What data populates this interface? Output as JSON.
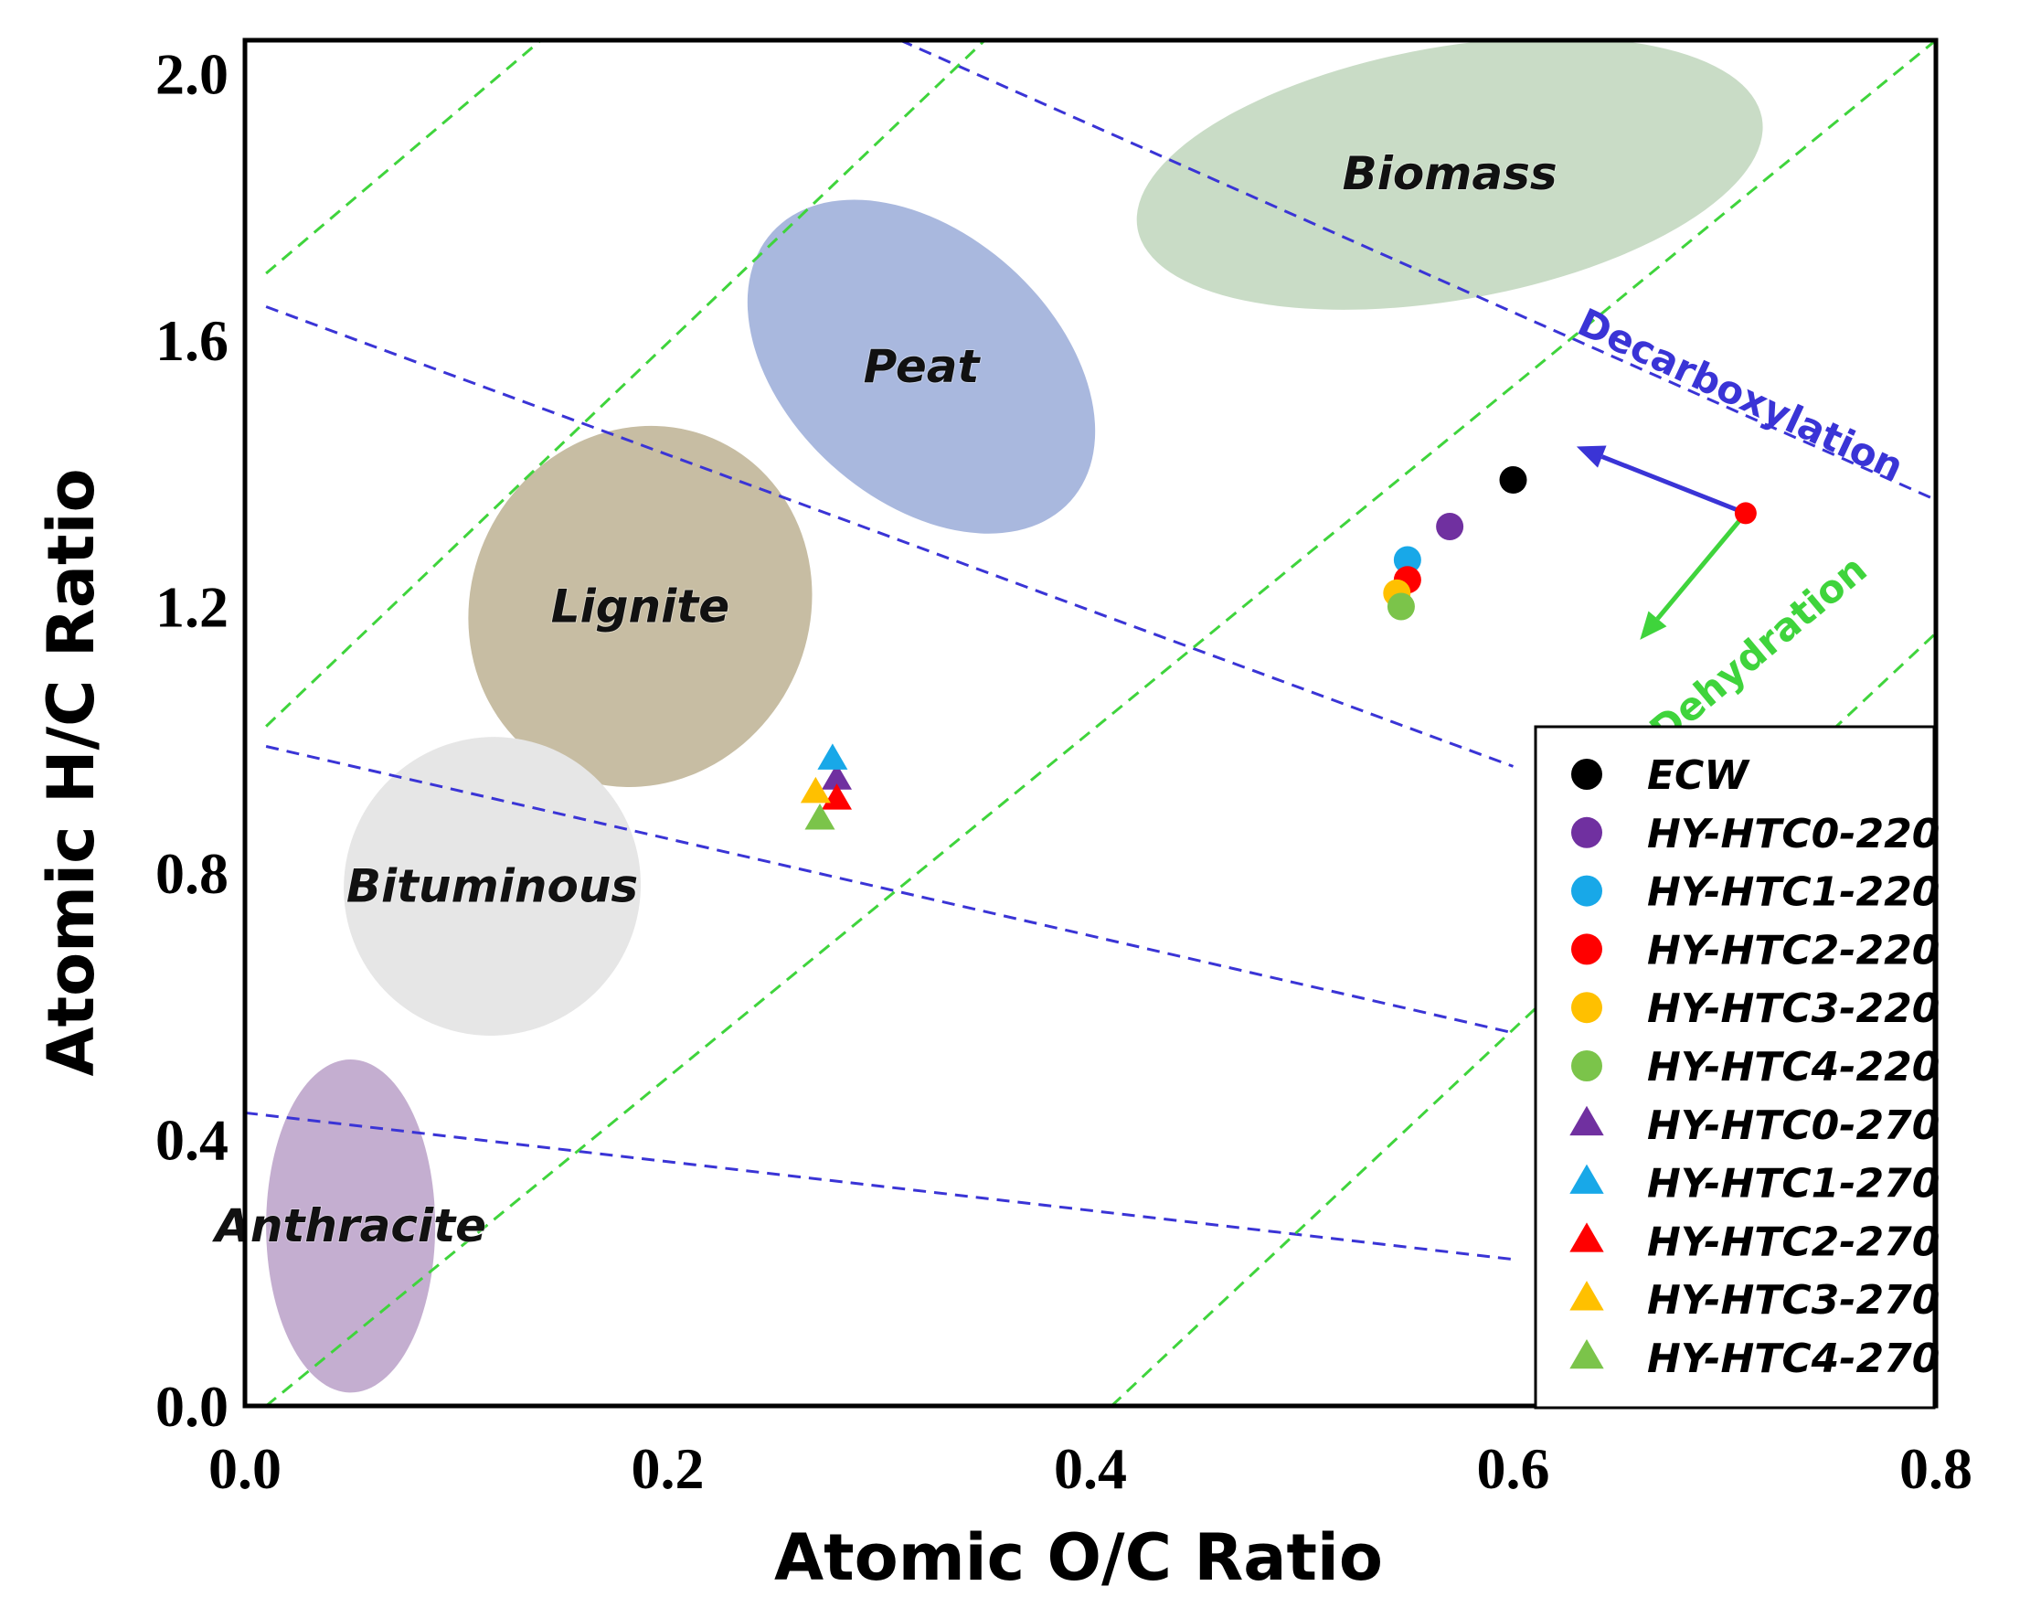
{
  "chart_data": {
    "type": "scatter",
    "title": "",
    "xlabel": "Atomic O/C Ratio",
    "ylabel": "Atomic H/C Ratio",
    "xlim": [
      0.0,
      0.8
    ],
    "ylim": [
      0.0,
      2.05
    ],
    "xticks": [
      "0.0",
      "0.2",
      "0.4",
      "0.6",
      "0.8"
    ],
    "yticks": [
      "0.0",
      "0.4",
      "0.8",
      "1.2",
      "1.6",
      "2.0"
    ],
    "grid": false,
    "regions": [
      {
        "name": "Biomass",
        "cx": 0.57,
        "cy": 1.85,
        "rx": 0.15,
        "ry": 0.19,
        "rotation": -10,
        "color": "#c9dcc6"
      },
      {
        "name": "Peat",
        "cx": 0.32,
        "cy": 1.56,
        "rx": 0.095,
        "ry": 0.2,
        "rotation": 42,
        "color": "#a9b8de"
      },
      {
        "name": "Lignite",
        "cx": 0.187,
        "cy": 1.2,
        "rx": 0.08,
        "ry": 0.275,
        "rotation": 26,
        "color": "#c7bda3"
      },
      {
        "name": "Bituminous",
        "cx": 0.117,
        "cy": 0.78,
        "rx": 0.07,
        "ry": 0.225,
        "rotation": 32,
        "color": "#e6e6e6"
      },
      {
        "name": "Anthracite",
        "cx": 0.05,
        "cy": 0.27,
        "rx": 0.04,
        "ry": 0.25,
        "rotation": 0,
        "color": "#c4aed0"
      }
    ],
    "reference_lines": {
      "decarboxylation": {
        "color": "#3a34d6",
        "segments": [
          [
            [
              0.0,
              0.44
            ],
            [
              0.6,
              0.22
            ]
          ],
          [
            [
              0.01,
              0.99
            ],
            [
              0.6,
              0.56
            ]
          ],
          [
            [
              0.01,
              1.65
            ],
            [
              0.6,
              0.96
            ]
          ],
          [
            [
              0.31,
              2.05
            ],
            [
              0.8,
              1.36
            ]
          ]
        ]
      },
      "dehydration": {
        "color": "#3fd43c",
        "segments": [
          [
            [
              0.01,
              1.7
            ],
            [
              0.14,
              2.05
            ]
          ],
          [
            [
              0.01,
              1.02
            ],
            [
              0.35,
              2.05
            ]
          ],
          [
            [
              0.01,
              0.0
            ],
            [
              0.8,
              2.05
            ]
          ],
          [
            [
              0.41,
              0.0
            ],
            [
              0.8,
              1.16
            ]
          ]
        ]
      }
    },
    "arrows": [
      {
        "label": "Decarboxylation",
        "color": "#3a34d6",
        "from": [
          0.71,
          1.34
        ],
        "to": [
          0.63,
          1.44
        ]
      },
      {
        "label": "Dehydration",
        "color": "#3fd43c",
        "from": [
          0.71,
          1.34
        ],
        "to": [
          0.66,
          1.15
        ]
      }
    ],
    "series": [
      {
        "name": "ECW",
        "marker": "circle",
        "color": "#000000",
        "x": 0.6,
        "y": 1.39
      },
      {
        "name": "HY-HTC0-220",
        "marker": "circle",
        "color": "#7030a0",
        "x": 0.57,
        "y": 1.32
      },
      {
        "name": "HY-HTC1-220",
        "marker": "circle",
        "color": "#18a8e8",
        "x": 0.55,
        "y": 1.27
      },
      {
        "name": "HY-HTC2-220",
        "marker": "circle",
        "color": "#ff0000",
        "x": 0.55,
        "y": 1.24
      },
      {
        "name": "HY-HTC3-220",
        "marker": "circle",
        "color": "#ffc000",
        "x": 0.545,
        "y": 1.22
      },
      {
        "name": "HY-HTC4-220",
        "marker": "circle",
        "color": "#7bc44a",
        "x": 0.547,
        "y": 1.2
      },
      {
        "name": "HY-HTC0-270",
        "marker": "triangle",
        "color": "#7030a0",
        "x": 0.28,
        "y": 0.94
      },
      {
        "name": "HY-HTC1-270",
        "marker": "triangle",
        "color": "#18a8e8",
        "x": 0.278,
        "y": 0.97
      },
      {
        "name": "HY-HTC2-270",
        "marker": "triangle",
        "color": "#ff0000",
        "x": 0.28,
        "y": 0.91
      },
      {
        "name": "HY-HTC3-270",
        "marker": "triangle",
        "color": "#ffc000",
        "x": 0.27,
        "y": 0.92
      },
      {
        "name": "HY-HTC4-270",
        "marker": "triangle",
        "color": "#7bc44a",
        "x": 0.272,
        "y": 0.88
      }
    ],
    "legend_position": "lower-right"
  }
}
